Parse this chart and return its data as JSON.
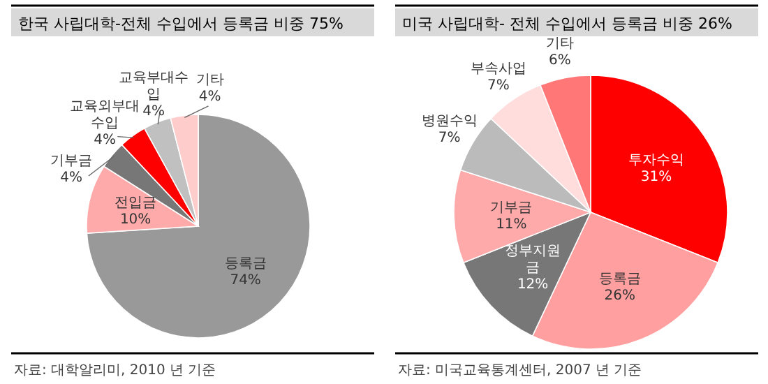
{
  "chart_data": [
    {
      "type": "pie",
      "title": "한국 사립대학-전체 수입에서 등록금 비중 75%",
      "categories": [
        "등록금",
        "전입금",
        "기부금",
        "교육외부대\n수입",
        "교육부대수\n입",
        "기타"
      ],
      "values": [
        74,
        10,
        4,
        4,
        4,
        4
      ],
      "value_labels": [
        "74%",
        "10%",
        "4%",
        "4%",
        "4%",
        "4%"
      ],
      "colors": [
        "#999999",
        "#ffaaaa",
        "#777777",
        "#ff0000",
        "#c0c0c0",
        "#ffcccc"
      ],
      "annotations": [
        "자료: 대학알리미, 2010 년 기준"
      ]
    },
    {
      "type": "pie",
      "title": "미국 사립대학- 전체 수입에서 등록금 비중 26%",
      "categories": [
        "투자수익",
        "등록금",
        "정부지원\n금",
        "기부금",
        "병원수익",
        "부속사업",
        "기타"
      ],
      "values": [
        31,
        26,
        12,
        11,
        7,
        7,
        6
      ],
      "value_labels": [
        "31%",
        "26%",
        "12%",
        "11%",
        "7%",
        "7%",
        "6%"
      ],
      "colors": [
        "#ff0000",
        "#ff9f9f",
        "#777777",
        "#ffaaaa",
        "#bbbbbb",
        "#ffdddd",
        "#ff7777"
      ],
      "annotations": [
        "자료: 미국교육통계센터, 2007 년 기준"
      ]
    }
  ]
}
